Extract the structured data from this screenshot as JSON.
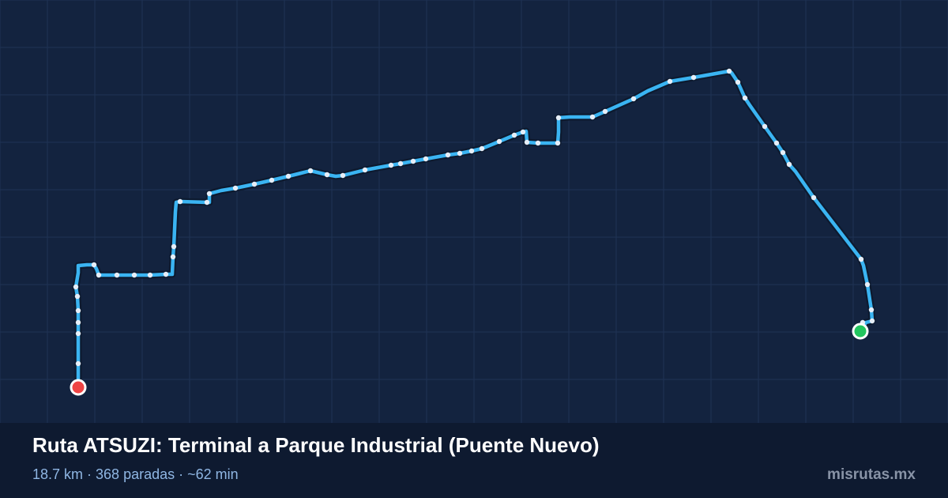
{
  "route": {
    "title": "Ruta ATSUZI: Terminal a Parque Industrial (Puente Nuevo)",
    "distance": "18.7 km",
    "stops": "368 paradas",
    "duration": "~62 min",
    "separator": " · "
  },
  "brand": "misrutas.mx",
  "colors": {
    "background": "#13233f",
    "footer": "#0e1a30",
    "grid": "#1f3354",
    "route": "#3ab4f2",
    "route_casing": "#0d1a2f",
    "stop": "#e6eef8",
    "start_marker": "#ef4444",
    "end_marker": "#22c55e"
  },
  "markers": {
    "start": "start-marker",
    "end": "end-marker"
  }
}
